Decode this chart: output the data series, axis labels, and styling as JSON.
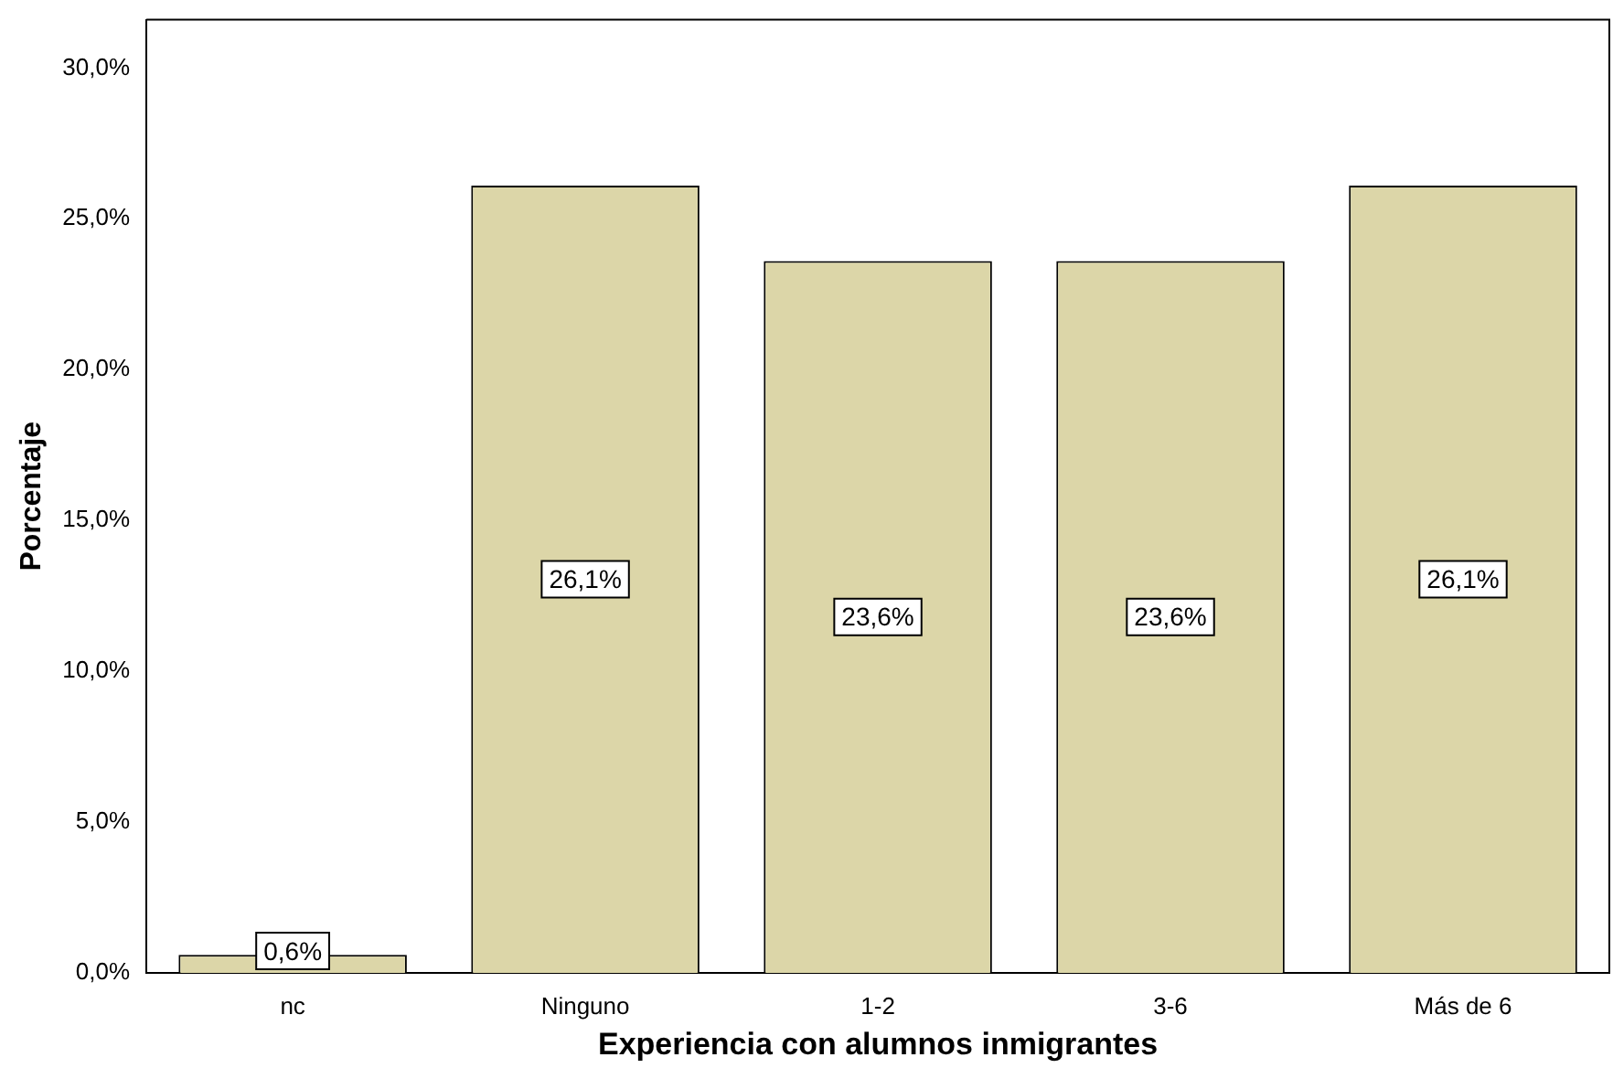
{
  "chart_data": {
    "type": "bar",
    "xlabel": "Experiencia con alumnos inmigrantes",
    "ylabel": "Porcentaje",
    "categories": [
      "nc",
      "Ninguno",
      "1-2",
      "3-6",
      "Más de 6"
    ],
    "values": [
      0.6,
      26.1,
      23.6,
      23.6,
      26.1
    ],
    "value_labels": [
      "0,6%",
      "26,1%",
      "23,6%",
      "23,6%",
      "26,1%"
    ],
    "color": "#dcd6a8",
    "ylim": [
      0,
      31.6
    ],
    "yticks": [
      {
        "value": 0,
        "label": "0,0%"
      },
      {
        "value": 5,
        "label": "5,0%"
      },
      {
        "value": 10,
        "label": "10,0%"
      },
      {
        "value": 15,
        "label": "15,0%"
      },
      {
        "value": 20,
        "label": "20,0%"
      },
      {
        "value": 25,
        "label": "25,0%"
      },
      {
        "value": 30,
        "label": "30,0%"
      }
    ],
    "grid": false,
    "legend": false
  }
}
